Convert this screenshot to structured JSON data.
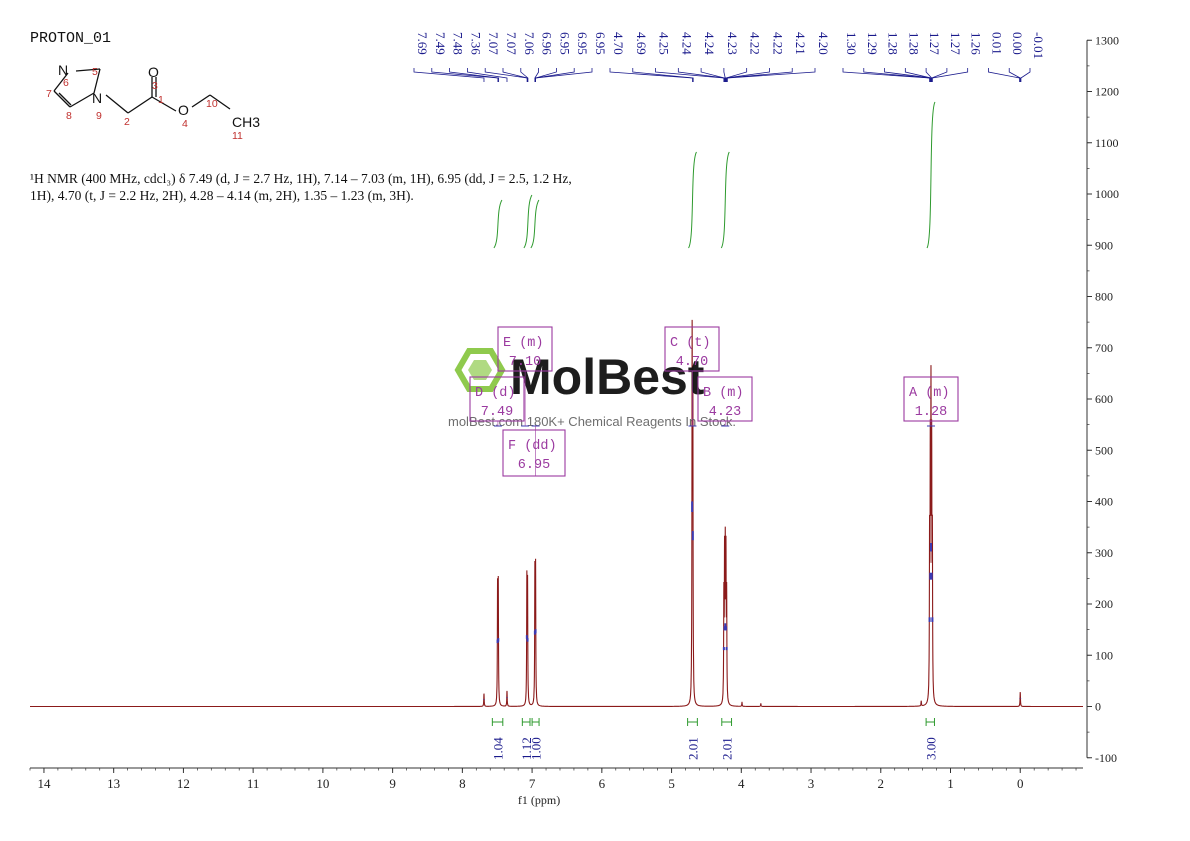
{
  "sample_name": "PROTON_01",
  "nmr_description": "¹H NMR (400 MHz, cdcl₃) δ 7.49 (d, J = 2.7 Hz, 1H), 7.14 – 7.03 (m, 1H), 6.95 (dd, J = 2.5, 1.2 Hz, 1H), 4.70 (t, J = 2.2 Hz, 2H), 4.28 – 4.14 (m, 2H), 1.35 – 1.23 (m, 3H).",
  "structure": {
    "atoms": [
      {
        "symbol": "N",
        "number": "6"
      },
      {
        "symbol": "",
        "number": "5"
      },
      {
        "symbol": "",
        "number": "7"
      },
      {
        "symbol": "N",
        "number": "9"
      },
      {
        "symbol": "",
        "number": "8"
      },
      {
        "symbol": "",
        "number": "2"
      },
      {
        "symbol": "",
        "number": "1"
      },
      {
        "symbol": "O",
        "number": "3"
      },
      {
        "symbol": "O",
        "number": "4"
      },
      {
        "symbol": "",
        "number": "10"
      },
      {
        "symbol": "CH3",
        "number": "11"
      }
    ]
  },
  "watermark": {
    "brand": "MolBest",
    "url_text": "molBest.com  180K+ Chemical Reagents In Stock."
  },
  "colors": {
    "spectrum": "#8b1a1a",
    "peak_labels": "#1a1a8c",
    "integral": "#2e9a2e",
    "multiplet_box": "#9b3aa0",
    "axis": "#333333",
    "watermark_green": "#7bc12e"
  },
  "chart_data": {
    "type": "line",
    "xlabel": "f1 (ppm)",
    "xlim": [
      14.2,
      -0.9
    ],
    "x_reversed": true,
    "ylim": [
      -120,
      1320
    ],
    "x_ticks": [
      14,
      13,
      12,
      11,
      10,
      9,
      8,
      7,
      6,
      5,
      4,
      3,
      2,
      1,
      0
    ],
    "y_ticks": [
      1300,
      1200,
      1100,
      1000,
      900,
      800,
      700,
      600,
      500,
      400,
      300,
      200,
      100,
      0,
      -100
    ],
    "peak_labels": [
      "7.69",
      "7.49",
      "7.48",
      "7.36",
      "7.07",
      "7.07",
      "7.06",
      "6.96",
      "6.95",
      "6.95",
      "6.95",
      "4.70",
      "4.69",
      "4.25",
      "4.24",
      "4.24",
      "4.23",
      "4.22",
      "4.22",
      "4.21",
      "4.20",
      "1.30",
      "1.29",
      "1.28",
      "1.28",
      "1.27",
      "1.27",
      "1.26",
      "0.01",
      "0.00",
      "-0.01"
    ],
    "peaks": [
      {
        "ppm": 7.69,
        "height": 25
      },
      {
        "ppm": 7.495,
        "height": 225
      },
      {
        "ppm": 7.485,
        "height": 230
      },
      {
        "ppm": 7.36,
        "height": 30
      },
      {
        "ppm": 7.075,
        "height": 240
      },
      {
        "ppm": 7.065,
        "height": 230
      },
      {
        "ppm": 6.96,
        "height": 255
      },
      {
        "ppm": 6.95,
        "height": 260
      },
      {
        "ppm": 4.705,
        "height": 690
      },
      {
        "ppm": 4.695,
        "height": 590
      },
      {
        "ppm": 4.25,
        "height": 200
      },
      {
        "ppm": 4.24,
        "height": 270
      },
      {
        "ppm": 4.23,
        "height": 280
      },
      {
        "ppm": 4.22,
        "height": 270
      },
      {
        "ppm": 4.21,
        "height": 200
      },
      {
        "ppm": 3.99,
        "height": 8
      },
      {
        "ppm": 3.72,
        "height": 6
      },
      {
        "ppm": 1.42,
        "height": 10
      },
      {
        "ppm": 1.3,
        "height": 300
      },
      {
        "ppm": 1.29,
        "height": 450
      },
      {
        "ppm": 1.28,
        "height": 550
      },
      {
        "ppm": 1.27,
        "height": 450
      },
      {
        "ppm": 1.26,
        "height": 300
      },
      {
        "ppm": 0.0,
        "height": 28
      }
    ],
    "multiplets": [
      {
        "letter": "A",
        "type": "(m)",
        "shift": "1.28",
        "ppm": 1.28
      },
      {
        "letter": "B",
        "type": "(m)",
        "shift": "4.23",
        "ppm": 4.23
      },
      {
        "letter": "C",
        "type": "(t)",
        "shift": "4.70",
        "ppm": 4.7
      },
      {
        "letter": "D",
        "type": "(d)",
        "shift": "7.49",
        "ppm": 7.49
      },
      {
        "letter": "E",
        "type": "(m)",
        "shift": "7.10",
        "ppm": 7.1
      },
      {
        "letter": "F",
        "type": "(dd)",
        "shift": "6.95",
        "ppm": 6.95
      }
    ],
    "integrals": [
      {
        "value": "1.04",
        "from": 7.57,
        "to": 7.42
      },
      {
        "value": "1.12",
        "from": 7.14,
        "to": 7.03
      },
      {
        "value": "1.00",
        "from": 7.0,
        "to": 6.9
      },
      {
        "value": "2.01",
        "from": 4.77,
        "to": 4.63
      },
      {
        "value": "2.01",
        "from": 4.28,
        "to": 4.14
      },
      {
        "value": "3.00",
        "from": 1.35,
        "to": 1.23
      }
    ]
  }
}
